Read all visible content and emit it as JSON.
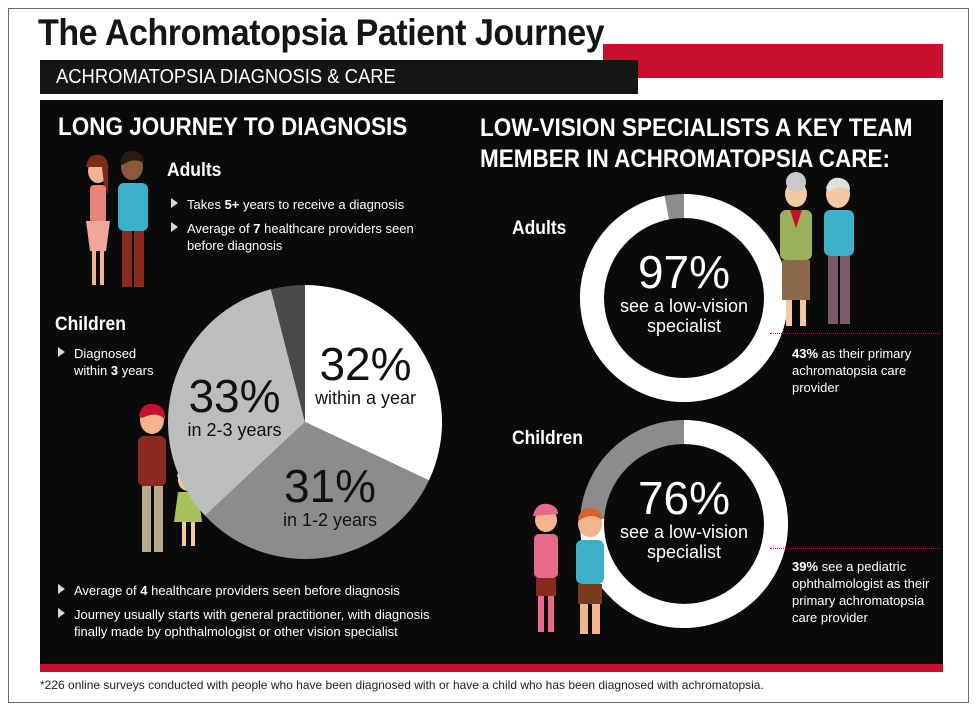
{
  "header": {
    "title": "The Achromatopsia Patient Journey",
    "subtitle": "ACHROMATOPSIA DIAGNOSIS & CARE"
  },
  "left": {
    "heading": "LONG JOURNEY TO DIAGNOSIS",
    "adults": {
      "label": "Adults",
      "bullets": [
        {
          "pre": "Takes ",
          "bold": "5+",
          "post": " years to receive a diagnosis"
        },
        {
          "pre": "Average of ",
          "bold": "7",
          "post": " healthcare providers seen before diagnosis"
        }
      ]
    },
    "children": {
      "label": "Children",
      "bullet": {
        "pre": "Diagnosed within ",
        "bold": "3",
        "post": " years"
      }
    },
    "pie": {
      "slices": [
        {
          "value": 32,
          "label": "32%",
          "desc": "within a year",
          "color": "#ffffff"
        },
        {
          "value": 31,
          "label": "31%",
          "desc": "in 1-2 years",
          "color": "#8c8c8c"
        },
        {
          "value": 33,
          "label": "33%",
          "desc": "in 2-3 years",
          "color": "#bdbdbd"
        },
        {
          "value": 4,
          "label": "",
          "desc": "",
          "color": "#4a4a4a"
        }
      ]
    },
    "bottom_bullets": [
      {
        "pre": "Average of ",
        "bold": "4",
        "post": " healthcare providers seen before diagnosis"
      },
      {
        "pre": "Journey usually starts with general practitioner, with diagnosis finally made by ophthalmologist or other vision specialist",
        "bold": "",
        "post": ""
      }
    ]
  },
  "right": {
    "heading_line1": "LOW-VISION SPECIALISTS A KEY TEAM",
    "heading_line2": "MEMBER IN ACHROMATOPSIA CARE:",
    "adults": {
      "label": "Adults",
      "value": 97,
      "pct": "97%",
      "line1": "see a low-vision",
      "line2": "specialist",
      "note_bold": "43%",
      "note_rest": " as their primary achromatopsia care provider"
    },
    "children": {
      "label": "Children",
      "value": 76,
      "pct": "76%",
      "line1": "see a low-vision",
      "line2": "specialist",
      "note_bold": "39%",
      "note_rest": " see a pediatric ophthalmologist as their primary achromatopsia care provider"
    }
  },
  "footnote": "*226 online surveys conducted with people who have been diagnosed with or have a child who has been diagnosed with achromatopsia.",
  "colors": {
    "accent_red": "#c8102e",
    "panel": "#0a0a0a"
  }
}
